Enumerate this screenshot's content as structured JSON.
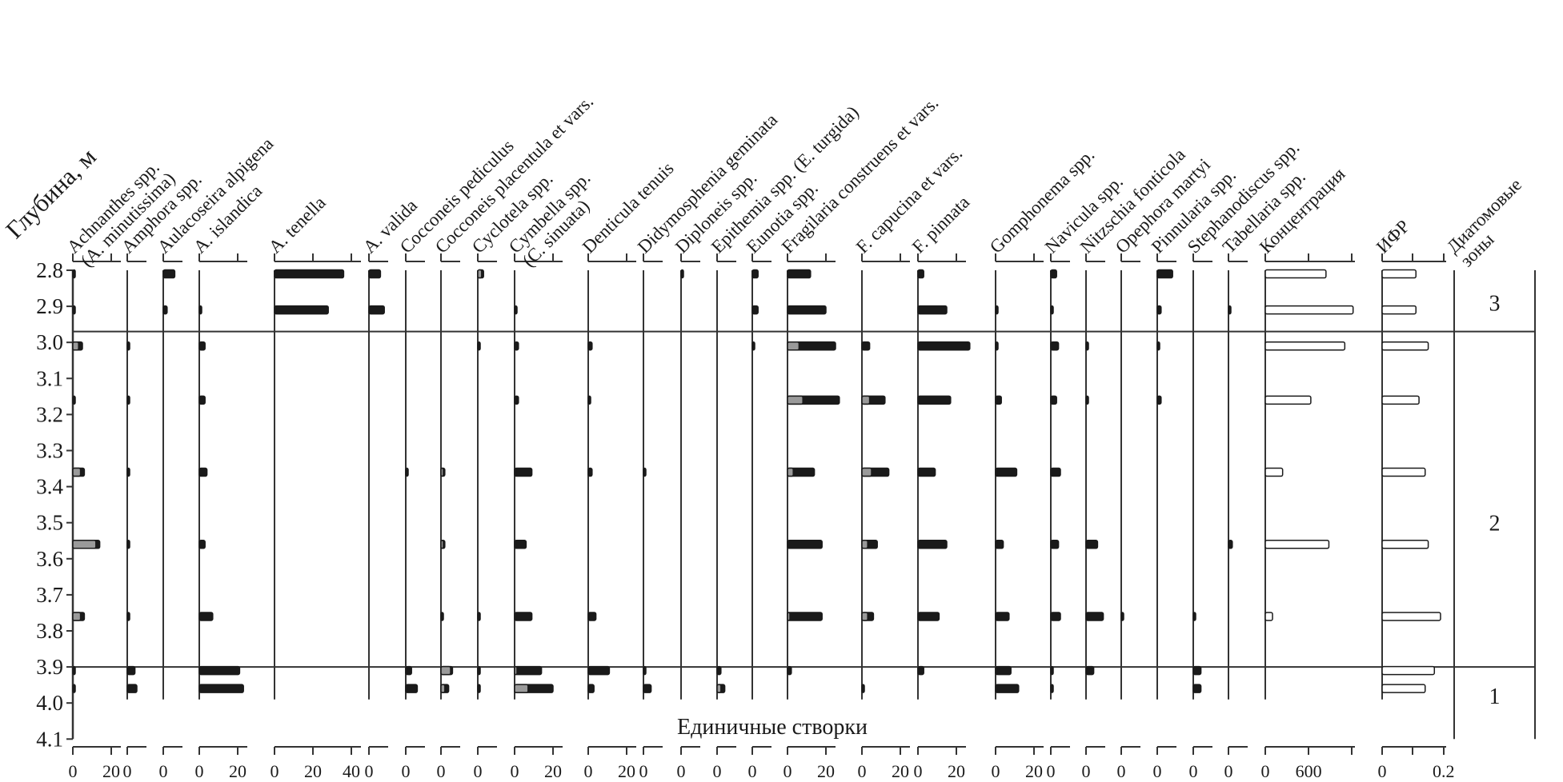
{
  "chart_data": {
    "type": "bar",
    "orientation": "horizontal stratigraphic",
    "y_label": "Глубина, м",
    "y_ticks": [
      "2.8",
      "2.9",
      "3.0",
      "3.1",
      "3.2",
      "3.3",
      "3.4",
      "3.5",
      "3.6",
      "3.7",
      "3.8",
      "3.9",
      "4.0",
      "4.1"
    ],
    "ylim": [
      2.8,
      4.1
    ],
    "y_reversed": true,
    "sample_depths": [
      2.81,
      2.91,
      3.01,
      3.16,
      3.36,
      3.56,
      3.76,
      3.91,
      3.96
    ],
    "colors": {
      "main": "#1a1a1a",
      "highlight": "#9a9a9a",
      "open": "#ffffff"
    },
    "taxa": [
      {
        "label": [
          "Achnanthes spp.",
          "(A. minutissima)"
        ],
        "ticks": [
          "0",
          "20"
        ],
        "max": 20,
        "values": [
          1,
          1,
          5,
          1,
          6,
          14,
          6,
          1,
          1
        ],
        "highlight": [
          0,
          0,
          3,
          0,
          4,
          12,
          4,
          0,
          0
        ]
      },
      {
        "label": [
          "Amphora spp."
        ],
        "ticks": [
          "0"
        ],
        "max": 8,
        "values": [
          0,
          0,
          0.5,
          0.5,
          0.5,
          0.5,
          0.5,
          4,
          5
        ]
      },
      {
        "label": [
          "Aulacoseira alpigena"
        ],
        "ticks": [
          "0"
        ],
        "max": 8,
        "values": [
          6,
          2,
          0,
          0,
          0,
          0,
          0,
          0,
          0
        ]
      },
      {
        "label": [
          "A. islandica"
        ],
        "ticks": [
          "0",
          "20"
        ],
        "max": 28,
        "values": [
          0,
          1,
          3,
          3,
          4,
          3,
          7,
          21,
          23
        ]
      },
      {
        "label": [
          "A. tenella"
        ],
        "ticks": [
          "0",
          "20",
          "40"
        ],
        "max": 40,
        "values": [
          36,
          28,
          0,
          0,
          0,
          0,
          0,
          0,
          0
        ]
      },
      {
        "label": [
          "A. valida"
        ],
        "ticks": [
          "0"
        ],
        "max": 8,
        "values": [
          6,
          8,
          0,
          0,
          0,
          0,
          0,
          0,
          0
        ]
      },
      {
        "label": [
          "Cocconeis pediculus"
        ],
        "ticks": [
          "0"
        ],
        "max": 8,
        "values": [
          0,
          0,
          0,
          0,
          0.5,
          0,
          0,
          3,
          6
        ]
      },
      {
        "label": [
          "Cocconeis placentula et vars."
        ],
        "ticks": [
          "0"
        ],
        "max": 8,
        "values": [
          0,
          0,
          0,
          0,
          2,
          2,
          0.5,
          6,
          4
        ],
        "highlight": [
          0,
          0,
          0,
          0,
          1,
          1,
          0,
          5,
          2
        ]
      },
      {
        "label": [
          "Cyclotela spp."
        ],
        "ticks": [
          "0"
        ],
        "max": 8,
        "values": [
          3,
          0,
          0.5,
          0,
          0,
          0,
          0.5,
          0.5,
          0.5
        ],
        "highlight": [
          2,
          0,
          0,
          0,
          0,
          0,
          0,
          0,
          0
        ]
      },
      {
        "label": [
          "Cymbella spp.",
          "(C. sinuata)"
        ],
        "ticks": [
          "0",
          "20"
        ],
        "max": 20,
        "values": [
          0,
          0.5,
          2,
          2,
          9,
          6,
          9,
          14,
          20
        ],
        "highlight": [
          0,
          0,
          0,
          0,
          0,
          0,
          0,
          1,
          7
        ]
      },
      {
        "label": [
          "Denticula tenuis"
        ],
        "ticks": [
          "0",
          "20"
        ],
        "max": 20,
        "values": [
          0,
          0,
          2,
          1,
          2,
          0,
          4,
          11,
          3
        ]
      },
      {
        "label": [
          "Didymosphenia geminata"
        ],
        "ticks": [
          "0"
        ],
        "max": 8,
        "values": [
          0,
          0,
          0,
          0,
          0.5,
          0,
          0,
          1,
          4
        ]
      },
      {
        "label": [
          "Diploneis spp."
        ],
        "ticks": [
          "0"
        ],
        "max": 8,
        "values": [
          1,
          0,
          0,
          0,
          0,
          0,
          0,
          0,
          0
        ]
      },
      {
        "label": [
          "Epithemia spp. (E. turgida)"
        ],
        "ticks": [
          "0"
        ],
        "max": 8,
        "values": [
          0,
          0,
          0,
          0,
          0,
          0,
          0,
          2,
          4
        ],
        "highlight": [
          0,
          0,
          0,
          0,
          0,
          0,
          0,
          0,
          2
        ]
      },
      {
        "label": [
          "Eunotia spp."
        ],
        "ticks": [
          "0"
        ],
        "max": 8,
        "values": [
          3,
          3,
          1,
          0,
          0,
          0,
          0,
          0,
          0
        ]
      },
      {
        "label": [
          "Fragilaria construens et vars."
        ],
        "ticks": [
          "0",
          "20"
        ],
        "max": 25,
        "values": [
          12,
          20,
          25,
          27,
          14,
          18,
          18,
          2,
          0
        ],
        "highlight": [
          0,
          0,
          6,
          8,
          3,
          0,
          1,
          0,
          0
        ]
      },
      {
        "label": [
          "F. capucina et vars."
        ],
        "ticks": [
          "0",
          "20"
        ],
        "max": 20,
        "values": [
          0,
          0,
          4,
          12,
          14,
          8,
          6,
          0,
          1
        ],
        "highlight": [
          0,
          0,
          0,
          4,
          5,
          3,
          3,
          0,
          0
        ]
      },
      {
        "label": [
          "F. pinnata"
        ],
        "ticks": [
          "0",
          "20"
        ],
        "max": 27,
        "values": [
          3,
          15,
          27,
          17,
          9,
          15,
          11,
          3,
          0
        ]
      },
      {
        "label": [
          "Gomphonema spp."
        ],
        "ticks": [
          "0",
          "20"
        ],
        "max": 20,
        "values": [
          0,
          1,
          1,
          3,
          11,
          4,
          7,
          8,
          12
        ]
      },
      {
        "label": [
          "Navicula spp."
        ],
        "ticks": [
          "0"
        ],
        "max": 8,
        "values": [
          3,
          0.5,
          4,
          3,
          5,
          4,
          5,
          1,
          1
        ]
      },
      {
        "label": [
          "Nitzschia fonticola"
        ],
        "ticks": [
          "0"
        ],
        "max": 8,
        "values": [
          0,
          0,
          1,
          1,
          0,
          6,
          9,
          4,
          0
        ]
      },
      {
        "label": [
          "Opephora martyi"
        ],
        "ticks": [
          "0"
        ],
        "max": 8,
        "values": [
          0,
          0,
          0,
          0,
          0,
          0,
          1,
          0,
          0
        ]
      },
      {
        "label": [
          "Pinnularia spp."
        ],
        "ticks": [
          "0"
        ],
        "max": 8,
        "values": [
          8,
          2,
          1,
          2,
          0,
          0,
          0,
          0,
          0
        ]
      },
      {
        "label": [
          "Stephanodiscus spp."
        ],
        "ticks": [
          "0"
        ],
        "max": 8,
        "values": [
          0,
          0,
          0,
          0,
          0,
          0,
          1,
          4,
          4
        ]
      },
      {
        "label": [
          "Tabellaria spp."
        ],
        "ticks": [
          "0"
        ],
        "max": 8,
        "values": [
          0,
          1,
          0,
          0,
          0,
          2,
          0,
          0,
          0
        ]
      }
    ],
    "concentration": {
      "label": [
        "Концентрация"
      ],
      "ticks": [
        "0",
        "600"
      ],
      "values": [
        840,
        1215,
        1100,
        630,
        240,
        880,
        100,
        null,
        null
      ]
    },
    "ifr": {
      "label": [
        "ИФР"
      ],
      "ticks": [
        "0",
        "0.2"
      ],
      "values": [
        0.11,
        0.11,
        0.15,
        0.12,
        0.14,
        0.15,
        0.19,
        0.17,
        0.14
      ]
    },
    "zones": {
      "label": [
        "Диатомовые",
        "зоны"
      ],
      "boundaries": [
        2.97,
        3.9
      ],
      "items": [
        {
          "name": "3",
          "depth": 2.89
        },
        {
          "name": "2",
          "depth": 3.5
        },
        {
          "name": "1",
          "depth": 3.98
        }
      ]
    },
    "annotation": "Единичные створки"
  }
}
